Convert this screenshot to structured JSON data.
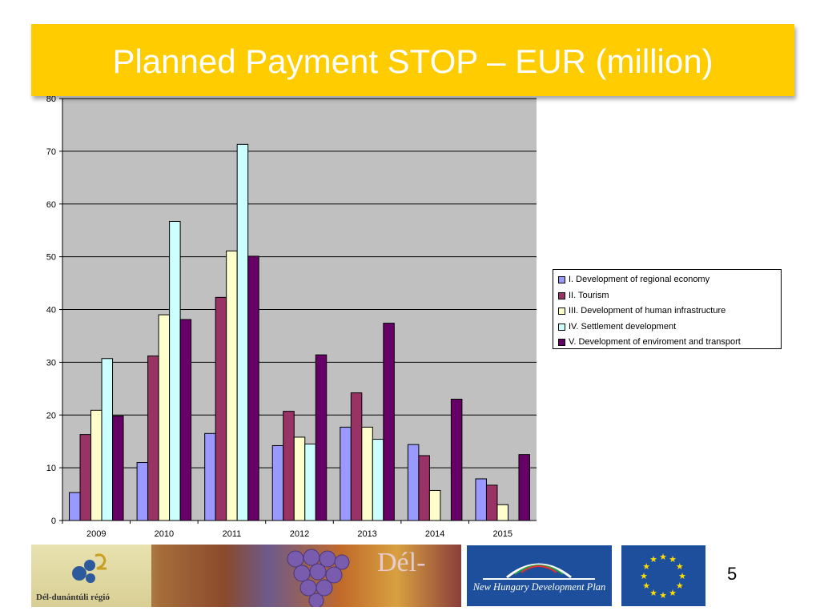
{
  "slide": {
    "title": "Planned Payment STOP – EUR (million)",
    "page_number": "5",
    "colors": {
      "title_bg": "#ffcc00",
      "title_text": "#ffffff",
      "plot_bg": "#c0c0c0"
    }
  },
  "chart_data": {
    "type": "bar",
    "title": "",
    "xlabel": "",
    "ylabel": "",
    "categories": [
      "2009",
      "2010",
      "2011",
      "2012",
      "2013",
      "2014",
      "2015"
    ],
    "ylim": [
      0,
      80
    ],
    "yticks": [
      0,
      10,
      20,
      30,
      40,
      50,
      60,
      70,
      80
    ],
    "grid": true,
    "legend_position": "right",
    "series": [
      {
        "name": "I. Development of regional economy",
        "color": "#9999ff",
        "values": [
          5.3,
          11.0,
          16.5,
          14.2,
          17.7,
          14.4,
          7.9
        ]
      },
      {
        "name": "II. Tourism",
        "color": "#993366",
        "values": [
          16.3,
          31.2,
          42.3,
          20.7,
          24.2,
          12.3,
          6.7
        ]
      },
      {
        "name": "III. Development of human infrastructure",
        "color": "#ffffcc",
        "values": [
          20.9,
          39.0,
          51.1,
          15.8,
          17.7,
          5.7,
          3.0
        ]
      },
      {
        "name": "IV. Settlement development",
        "color": "#ccffff",
        "values": [
          30.7,
          56.7,
          71.3,
          14.5,
          15.4,
          0,
          0
        ]
      },
      {
        "name": "V. Development of enviroment and transport",
        "color": "#660066",
        "values": [
          19.8,
          38.1,
          50.1,
          31.4,
          37.4,
          23.0,
          12.5
        ]
      }
    ]
  },
  "footer": {
    "region_logo_text": "Dél-dunántúli régió",
    "banner_text": "Dél-",
    "nhdp_text": "New Hungary Development Plan"
  }
}
